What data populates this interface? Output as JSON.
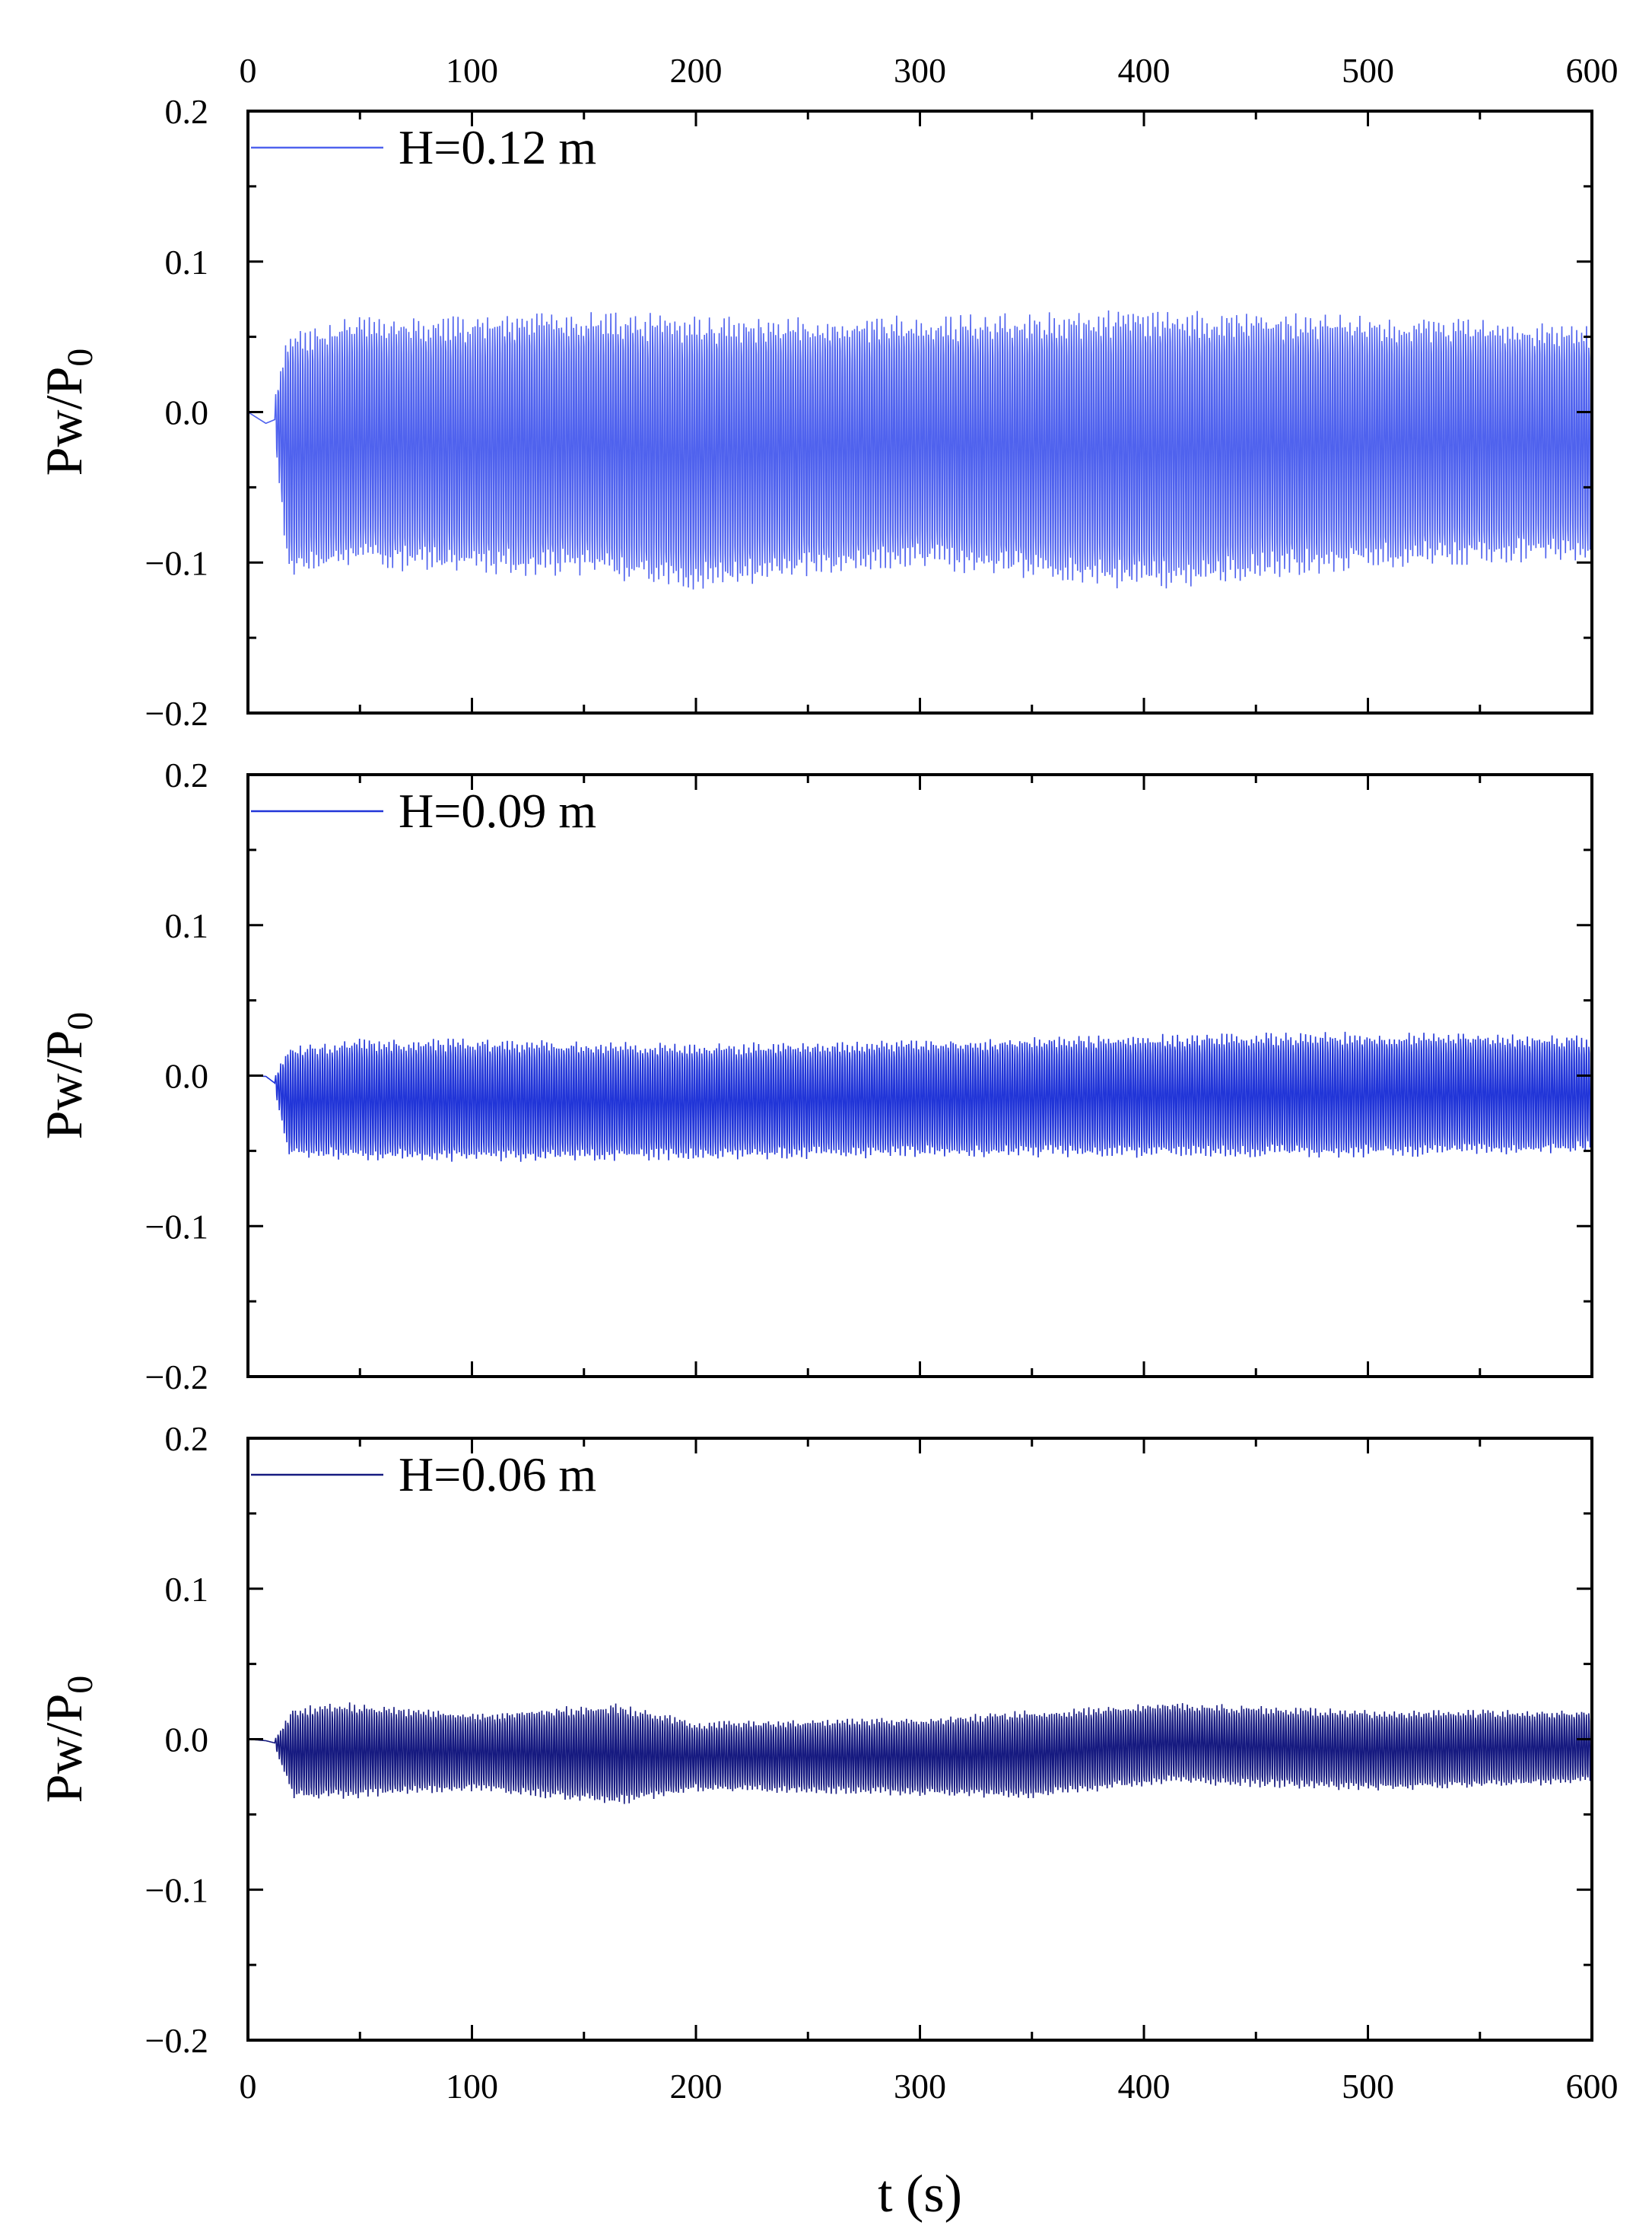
{
  "chart_data": [
    {
      "type": "line",
      "panel": "top",
      "series": [
        {
          "name": "H=0.12 m",
          "color": "#4f62ee",
          "amplitude_envelope": [
            {
              "t": 0,
              "max": 0.0,
              "min": 0.0
            },
            {
              "t": 8,
              "max": -0.005,
              "min": -0.01
            },
            {
              "t": 12,
              "max": 0.01,
              "min": -0.02
            },
            {
              "t": 18,
              "max": 0.055,
              "min": -0.11
            },
            {
              "t": 50,
              "max": 0.065,
              "min": -0.105
            },
            {
              "t": 100,
              "max": 0.065,
              "min": -0.11
            },
            {
              "t": 145,
              "max": 0.07,
              "min": -0.11
            },
            {
              "t": 200,
              "max": 0.065,
              "min": -0.12
            },
            {
              "t": 300,
              "max": 0.065,
              "min": -0.105
            },
            {
              "t": 400,
              "max": 0.07,
              "min": -0.12
            },
            {
              "t": 500,
              "max": 0.065,
              "min": -0.105
            },
            {
              "t": 600,
              "max": 0.06,
              "min": -0.1
            }
          ]
        }
      ],
      "xlim": [
        0,
        600
      ],
      "ylim": [
        -0.2,
        0.2
      ],
      "ylabel": "Pw/P0",
      "x_tick_labels": [
        "0",
        "100",
        "200",
        "300",
        "400",
        "500",
        "600"
      ],
      "y_tick_labels": [
        "0.2",
        "0.1",
        "0.0",
        "−0.1",
        "−0.2"
      ],
      "legend_position": "top-left",
      "grid": false
    },
    {
      "type": "line",
      "panel": "middle",
      "series": [
        {
          "name": "H=0.09 m",
          "color": "#2135d8",
          "amplitude_envelope": [
            {
              "t": 0,
              "max": 0.0,
              "min": 0.0
            },
            {
              "t": 8,
              "max": 0.002,
              "min": -0.003
            },
            {
              "t": 12,
              "max": 0.0,
              "min": -0.01
            },
            {
              "t": 18,
              "max": 0.02,
              "min": -0.055
            },
            {
              "t": 50,
              "max": 0.025,
              "min": -0.057
            },
            {
              "t": 100,
              "max": 0.025,
              "min": -0.058
            },
            {
              "t": 200,
              "max": 0.022,
              "min": -0.057
            },
            {
              "t": 300,
              "max": 0.025,
              "min": -0.055
            },
            {
              "t": 400,
              "max": 0.028,
              "min": -0.055
            },
            {
              "t": 500,
              "max": 0.03,
              "min": -0.055
            },
            {
              "t": 600,
              "max": 0.027,
              "min": -0.052
            }
          ]
        }
      ],
      "xlim": [
        0,
        600
      ],
      "ylim": [
        -0.2,
        0.2
      ],
      "ylabel": "Pw/P0",
      "x_tick_labels": [],
      "y_tick_labels": [
        "0.2",
        "0.1",
        "0.0",
        "−0.1",
        "−0.2"
      ],
      "legend_position": "top-left",
      "grid": false
    },
    {
      "type": "line",
      "panel": "bottom",
      "series": [
        {
          "name": "H=0.06 m",
          "color": "#161a80",
          "amplitude_envelope": [
            {
              "t": 0,
              "max": 0.0,
              "min": 0.0
            },
            {
              "t": 8,
              "max": 0.0,
              "min": -0.002
            },
            {
              "t": 12,
              "max": 0.0,
              "min": -0.005
            },
            {
              "t": 20,
              "max": 0.022,
              "min": -0.04
            },
            {
              "t": 45,
              "max": 0.025,
              "min": -0.04
            },
            {
              "t": 100,
              "max": 0.018,
              "min": -0.035
            },
            {
              "t": 165,
              "max": 0.025,
              "min": -0.045
            },
            {
              "t": 200,
              "max": 0.012,
              "min": -0.035
            },
            {
              "t": 300,
              "max": 0.015,
              "min": -0.038
            },
            {
              "t": 350,
              "max": 0.02,
              "min": -0.04
            },
            {
              "t": 410,
              "max": 0.025,
              "min": -0.03
            },
            {
              "t": 500,
              "max": 0.02,
              "min": -0.035
            },
            {
              "t": 600,
              "max": 0.02,
              "min": -0.03
            }
          ]
        }
      ],
      "xlim": [
        0,
        600
      ],
      "ylim": [
        -0.2,
        0.2
      ],
      "ylabel": "Pw/P0",
      "xlabel": "t (s)",
      "x_tick_labels": [
        "0",
        "100",
        "200",
        "300",
        "400",
        "500",
        "600"
      ],
      "y_tick_labels": [
        "0.2",
        "0.1",
        "0.0",
        "−0.1",
        "−0.2"
      ],
      "legend_position": "top-left",
      "grid": false
    }
  ]
}
